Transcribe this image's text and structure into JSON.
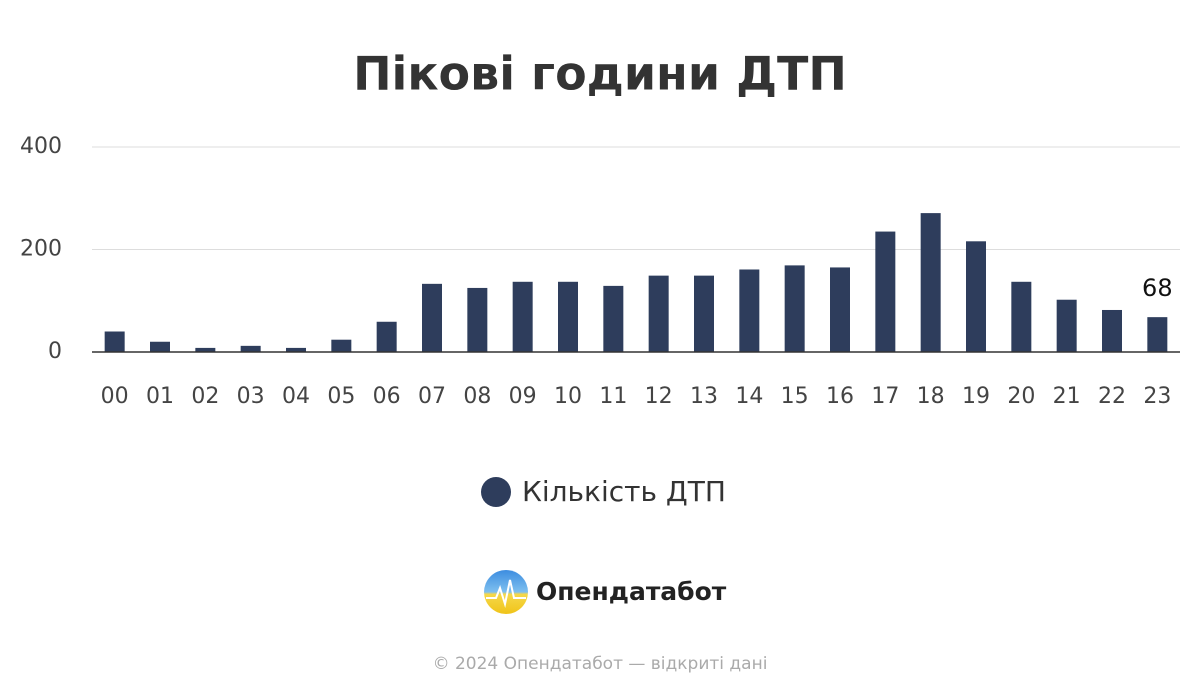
{
  "chart_data": {
    "type": "bar",
    "title": "Пікові години ДТП",
    "categories": [
      "00",
      "01",
      "02",
      "03",
      "04",
      "05",
      "06",
      "07",
      "08",
      "09",
      "10",
      "11",
      "12",
      "13",
      "14",
      "15",
      "16",
      "17",
      "18",
      "19",
      "20",
      "21",
      "22",
      "23"
    ],
    "series": [
      {
        "name": "Кількість ДТП",
        "color": "#2e3d5c",
        "values": [
          40,
          20,
          8,
          12,
          8,
          24,
          59,
          133,
          125,
          137,
          137,
          129,
          149,
          149,
          161,
          169,
          165,
          235,
          271,
          216,
          137,
          102,
          82,
          68
        ],
        "value_labels": [
          null,
          null,
          null,
          null,
          null,
          null,
          null,
          null,
          null,
          null,
          null,
          null,
          null,
          null,
          null,
          null,
          null,
          null,
          null,
          null,
          null,
          null,
          null,
          "68"
        ]
      }
    ],
    "ylim": [
      0,
      400
    ],
    "yticks": [
      0,
      200,
      400
    ],
    "grid": true
  },
  "branding": {
    "logo": "Опендатабот",
    "footer": "© 2024 Опендатабот — відкриті дані"
  }
}
